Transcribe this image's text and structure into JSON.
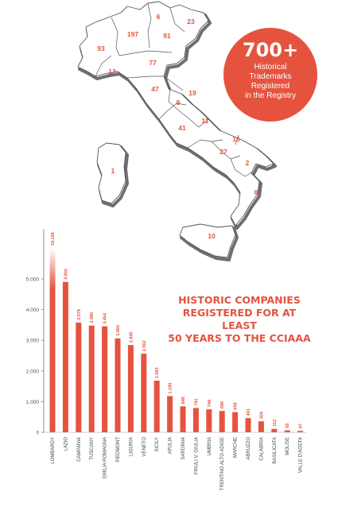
{
  "badge": {
    "number": "700+",
    "lines": [
      "Historical",
      "Trademarks",
      "Registered",
      "in the Registry"
    ]
  },
  "map": {
    "region_numbers": [
      "6",
      "23",
      "197",
      "91",
      "93",
      "77",
      "13",
      "47",
      "19",
      "9",
      "11",
      "41",
      "16",
      "27",
      "2",
      "1",
      "8",
      "10"
    ]
  },
  "heading": {
    "lines": [
      "HISTORIC COMPANIES",
      "REGISTERED FOR AT LEAST",
      "50 YEARS TO THE CCIAAA"
    ]
  },
  "colors": {
    "accent": "#e5533f",
    "map_outline": "#555555",
    "map_shadow": "#6e6e6e"
  },
  "chart_data": {
    "type": "bar",
    "title": "HISTORIC COMPANIES REGISTERED FOR AT LEAST 50 YEARS TO THE CCIAAA",
    "categories": [
      "LOMBARDY",
      "LAZIO",
      "CAMPANIA",
      "TUSCANY",
      "EMILIA ROMAGNA",
      "PIEDMONT",
      "LIGURIA",
      "VENETO",
      "SICILY",
      "APULIA",
      "SARDINIA",
      "FRIULI V. GIULIA",
      "UMBRIA",
      "TRENTINO ALTO ADIGE",
      "MARCHE",
      "ABRUZZO",
      "CALABRIA",
      "BASILICATA",
      "MOLISE",
      "VALLE D'AOSTA"
    ],
    "values": [
      19166,
      4902,
      3579,
      3480,
      3454,
      3060,
      2845,
      2562,
      1683,
      1180,
      846,
      791,
      748,
      696,
      658,
      461,
      359,
      112,
      65,
      47
    ],
    "value_labels": [
      "19.166",
      "4.902",
      "3.579",
      "3.480",
      "3.454",
      "3.060",
      "2.845",
      "2.562",
      "1.683",
      "1.180",
      "846",
      "791",
      "748",
      "696",
      "658",
      "461",
      "359",
      "112",
      "65",
      "47"
    ],
    "y_ticks": [
      "0",
      "1.000",
      "2.000",
      "3.000",
      "4.000",
      "5.000"
    ],
    "y_tick_values": [
      0,
      1000,
      2000,
      3000,
      4000,
      5000
    ],
    "ylim": [
      0,
      5000
    ],
    "axis_break": true,
    "grid": false
  }
}
